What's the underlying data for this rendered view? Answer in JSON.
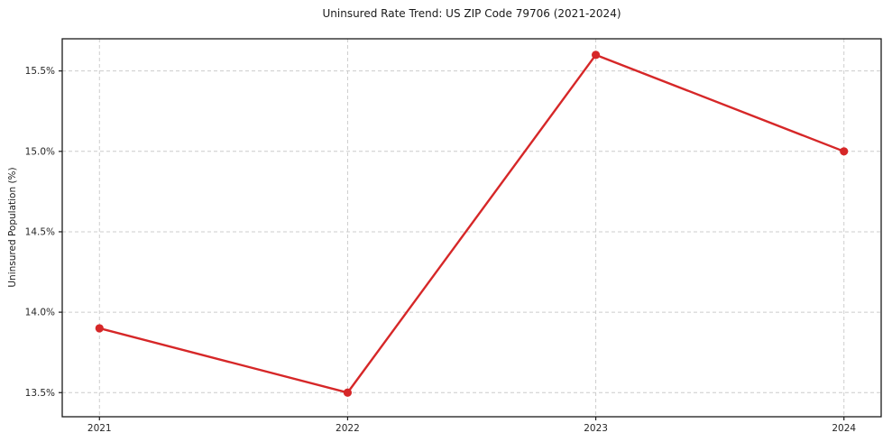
{
  "chart_data": {
    "type": "line",
    "title": "Uninsured Rate Trend: US ZIP Code 79706 (2021-2024)",
    "xlabel": "",
    "ylabel": "Uninsured Population (%)",
    "x": [
      2021,
      2022,
      2023,
      2024
    ],
    "values": [
      13.9,
      13.5,
      15.6,
      15.0
    ],
    "xlim": [
      2020.85,
      2024.15
    ],
    "ylim": [
      13.35,
      15.7
    ],
    "xticks": {
      "values": [
        2021,
        2022,
        2023,
        2024
      ],
      "labels": [
        "2021",
        "2022",
        "2023",
        "2024"
      ]
    },
    "yticks": {
      "values": [
        13.5,
        14.0,
        14.5,
        15.0,
        15.5
      ],
      "labels": [
        "13.5%",
        "14.0%",
        "14.5%",
        "15.0%",
        "15.5%"
      ]
    },
    "grid": true,
    "grid_style": "dashed",
    "grid_color": "#cccccc",
    "line_color": "#d62728",
    "marker": "circle",
    "axis_color": "#1a1a1a",
    "tick_label_color": "#262626",
    "background": "#ffffff",
    "legend_position": "none"
  }
}
